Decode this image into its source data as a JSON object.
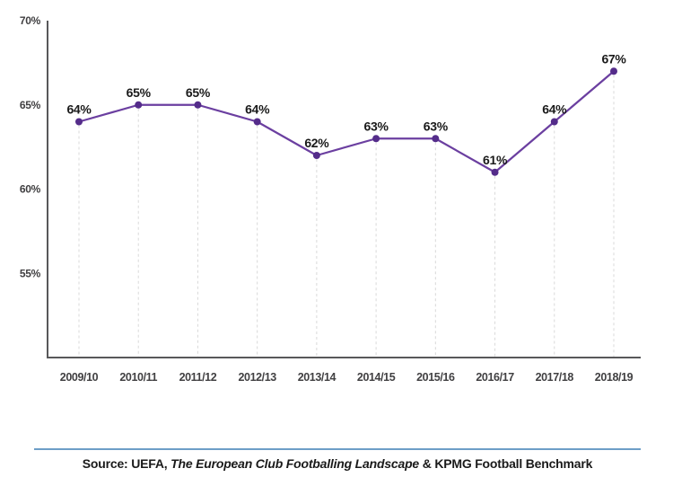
{
  "chart_data": {
    "type": "line",
    "categories": [
      "2009/10",
      "2010/11",
      "2011/12",
      "2012/13",
      "2013/14",
      "2014/15",
      "2015/16",
      "2016/17",
      "2017/18",
      "2018/19"
    ],
    "values": [
      64,
      65,
      65,
      64,
      62,
      63,
      63,
      61,
      64,
      67
    ],
    "point_labels": [
      "64%",
      "65%",
      "65%",
      "64%",
      "62%",
      "63%",
      "63%",
      "61%",
      "64%",
      "67%"
    ],
    "title": "",
    "xlabel": "",
    "ylabel": "",
    "ylim": [
      50,
      70
    ],
    "yticks": [
      55,
      60,
      65,
      70
    ],
    "ytick_labels": [
      "55%",
      "60%",
      "65%",
      "70%"
    ],
    "grid": "vertical dashed drop-lines from each point to x-axis",
    "legend": "none"
  },
  "colors": {
    "line": "#6b3fa0",
    "point": "#542c8a",
    "point_label": "#1a1a1a",
    "axis": "#58585a",
    "tick_label": "#414042",
    "gridline": "#d9d9d9",
    "divider": "#6d9ec7",
    "background": "#ffffff"
  },
  "footer": {
    "source_prefix": "Source: UEFA, ",
    "source_italic": "The European Club Footballing Landscape",
    "source_suffix": " & KPMG Football Benchmark"
  }
}
